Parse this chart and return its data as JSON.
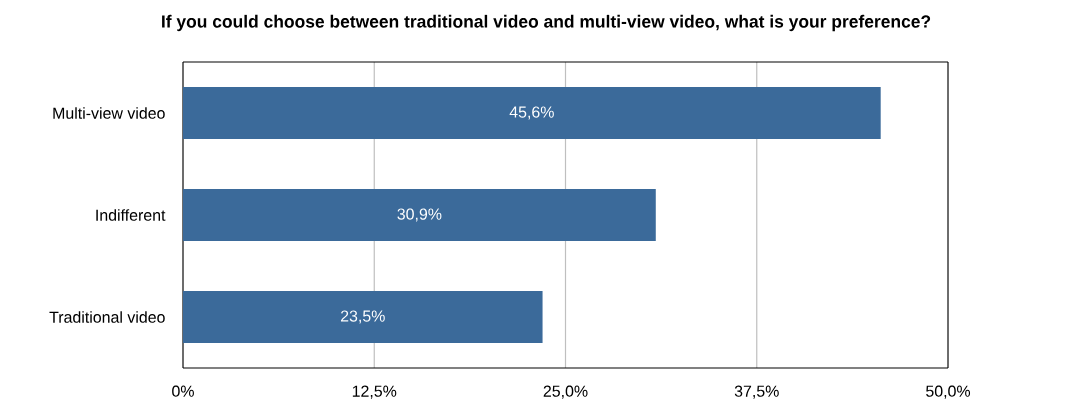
{
  "chart_data": {
    "type": "bar",
    "orientation": "horizontal",
    "title": "If you could choose between traditional video and multi-view video, what is your preference?",
    "categories": [
      "Multi-view video",
      "Indifferent",
      "Traditional video"
    ],
    "values": [
      45.6,
      30.9,
      23.5
    ],
    "value_labels": [
      "45,6%",
      "30,9%",
      "23,5%"
    ],
    "color": "#3b6a9a",
    "xlim": [
      0,
      50
    ],
    "xticks": [
      {
        "value": 0,
        "label": "0%"
      },
      {
        "value": 12.5,
        "label": "12,5%"
      },
      {
        "value": 25,
        "label": "25,0%"
      },
      {
        "value": 37.5,
        "label": "37,5%"
      },
      {
        "value": 50,
        "label": "50,0%"
      }
    ],
    "grid": "x"
  }
}
